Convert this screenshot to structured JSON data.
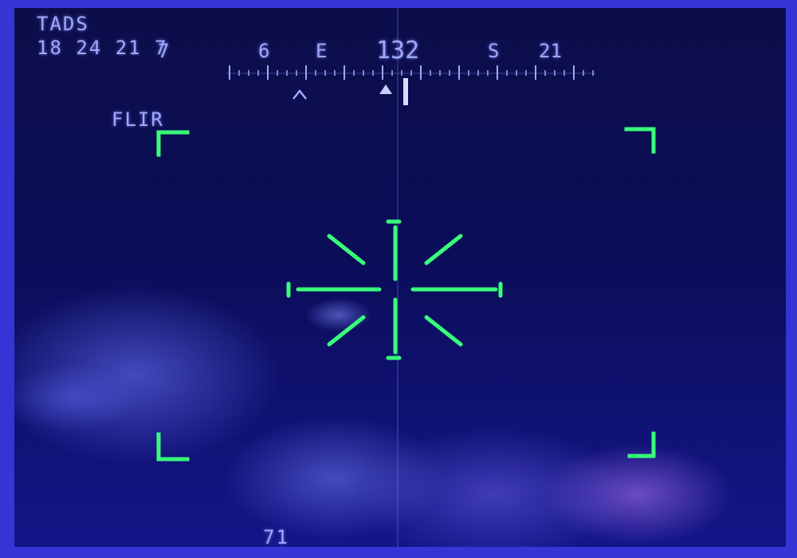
{
  "hud": {
    "sensor": "TADS",
    "time": "18 24 21 7",
    "mode": "FLIR",
    "bottom_readout": "71"
  },
  "heading_tape": {
    "labels": [
      "6",
      "E",
      "132",
      "S",
      "21",
      "7"
    ],
    "current_heading": "132"
  },
  "colors": {
    "symbology": "#38ff7a",
    "text": "#9fa8ff",
    "background": "#0b0d58"
  }
}
